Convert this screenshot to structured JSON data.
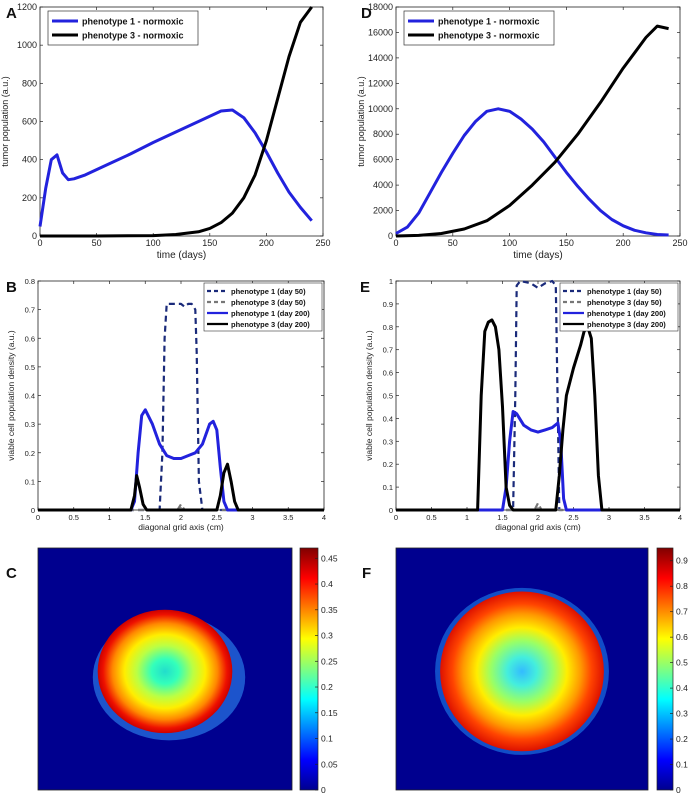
{
  "panels": {
    "A": {
      "letter": "A"
    },
    "B": {
      "letter": "B"
    },
    "C": {
      "letter": "C"
    },
    "D": {
      "letter": "D"
    },
    "E": {
      "letter": "E"
    },
    "F": {
      "letter": "F"
    }
  },
  "chart_data": [
    {
      "panel": "A",
      "type": "line",
      "xlabel": "time (days)",
      "ylabel": "tumor population (a.u.)",
      "xlim": [
        0,
        250
      ],
      "ylim": [
        0,
        1200
      ],
      "xticks": [
        0,
        50,
        100,
        150,
        200,
        250
      ],
      "yticks": [
        0,
        200,
        400,
        600,
        800,
        1000,
        1200
      ],
      "legend_position": "top-left",
      "series": [
        {
          "name": "phenotype 1 - normoxic",
          "color": "#2222dd",
          "style": "solid",
          "x": [
            0,
            5,
            10,
            15,
            20,
            25,
            30,
            40,
            60,
            80,
            100,
            120,
            140,
            160,
            170,
            180,
            190,
            200,
            210,
            220,
            230,
            240
          ],
          "y": [
            50,
            250,
            400,
            425,
            330,
            295,
            300,
            320,
            375,
            430,
            490,
            545,
            600,
            655,
            660,
            620,
            540,
            440,
            330,
            230,
            150,
            80
          ]
        },
        {
          "name": "phenotype 3 - normoxic",
          "color": "#000000",
          "style": "solid",
          "x": [
            0,
            50,
            100,
            120,
            140,
            150,
            160,
            170,
            180,
            190,
            200,
            210,
            220,
            230,
            240
          ],
          "y": [
            0,
            0,
            2,
            8,
            22,
            40,
            70,
            120,
            200,
            320,
            500,
            720,
            940,
            1120,
            1200
          ]
        }
      ]
    },
    {
      "panel": "D",
      "type": "line",
      "xlabel": "time (days)",
      "ylabel": "tumor population (a.u.)",
      "xlim": [
        0,
        250
      ],
      "ylim": [
        0,
        18000
      ],
      "xticks": [
        0,
        50,
        100,
        150,
        200,
        250
      ],
      "yticks": [
        0,
        2000,
        4000,
        6000,
        8000,
        10000,
        12000,
        14000,
        16000,
        18000
      ],
      "legend_position": "top-left",
      "series": [
        {
          "name": "phenotype 1 - normoxic",
          "color": "#2222dd",
          "style": "solid",
          "x": [
            0,
            10,
            20,
            30,
            40,
            50,
            60,
            70,
            80,
            90,
            100,
            110,
            120,
            130,
            140,
            150,
            160,
            170,
            180,
            190,
            200,
            210,
            220,
            230,
            240
          ],
          "y": [
            200,
            700,
            1800,
            3400,
            5000,
            6500,
            7900,
            9000,
            9800,
            10000,
            9800,
            9200,
            8400,
            7400,
            6200,
            5000,
            3900,
            2900,
            2000,
            1300,
            800,
            450,
            250,
            120,
            80
          ]
        },
        {
          "name": "phenotype 3 - normoxic",
          "color": "#000000",
          "style": "solid",
          "x": [
            0,
            20,
            40,
            60,
            80,
            100,
            120,
            140,
            160,
            180,
            200,
            210,
            220,
            230,
            240
          ],
          "y": [
            0,
            50,
            200,
            550,
            1200,
            2400,
            4000,
            5800,
            8000,
            10500,
            13200,
            14400,
            15600,
            16500,
            16300
          ]
        }
      ]
    },
    {
      "panel": "B",
      "type": "line",
      "xlabel": "diagonal grid axis (cm)",
      "ylabel": "viable cell population density (a.u.)",
      "xlim": [
        0,
        4
      ],
      "ylim": [
        0,
        0.8
      ],
      "xticks": [
        0,
        0.5,
        1,
        1.5,
        2,
        2.5,
        3,
        3.5,
        4
      ],
      "yticks": [
        0,
        0.1,
        0.2,
        0.3,
        0.4,
        0.5,
        0.6,
        0.7,
        0.8
      ],
      "legend_position": "top-right",
      "series": [
        {
          "name": "phenotype 1 (day 50)",
          "color": "#1a2a7a",
          "style": "dashed",
          "x": [
            0,
            1.7,
            1.74,
            1.77,
            1.8,
            1.9,
            2.0,
            2.05,
            2.1,
            2.15,
            2.2,
            2.22,
            2.25,
            2.3,
            4
          ],
          "y": [
            0,
            0,
            0.2,
            0.6,
            0.72,
            0.72,
            0.72,
            0.71,
            0.72,
            0.72,
            0.7,
            0.55,
            0.1,
            0,
            0
          ]
        },
        {
          "name": "phenotype 3 (day 50)",
          "color": "#777777",
          "style": "dashed",
          "x": [
            0,
            1.95,
            2.0,
            2.05,
            4
          ],
          "y": [
            0,
            0,
            0.02,
            0,
            0
          ]
        },
        {
          "name": "phenotype 1 (day 200)",
          "color": "#2222dd",
          "style": "solid",
          "x": [
            0,
            1.3,
            1.35,
            1.4,
            1.45,
            1.5,
            1.6,
            1.7,
            1.8,
            1.9,
            2.0,
            2.1,
            2.2,
            2.3,
            2.4,
            2.45,
            2.5,
            2.55,
            2.6,
            2.65,
            4
          ],
          "y": [
            0,
            0,
            0.03,
            0.2,
            0.33,
            0.35,
            0.3,
            0.23,
            0.19,
            0.18,
            0.18,
            0.19,
            0.2,
            0.23,
            0.3,
            0.31,
            0.28,
            0.15,
            0.03,
            0,
            0
          ]
        },
        {
          "name": "phenotype 3 (day 200)",
          "color": "#000000",
          "style": "solid",
          "x": [
            0,
            1.3,
            1.35,
            1.38,
            1.42,
            1.47,
            1.52,
            2.5,
            2.55,
            2.6,
            2.65,
            2.7,
            2.75,
            2.8,
            4
          ],
          "y": [
            0,
            0,
            0.05,
            0.12,
            0.08,
            0.02,
            0,
            0,
            0.05,
            0.13,
            0.16,
            0.1,
            0.03,
            0,
            0
          ]
        }
      ]
    },
    {
      "panel": "E",
      "type": "line",
      "xlabel": "diagonal grid axis (cm)",
      "ylabel": "viable cell population density (a.u.)",
      "xlim": [
        0,
        4
      ],
      "ylim": [
        0,
        1
      ],
      "xticks": [
        0,
        0.5,
        1,
        1.5,
        2,
        2.5,
        3,
        3.5,
        4
      ],
      "yticks": [
        0,
        0.1,
        0.2,
        0.3,
        0.4,
        0.5,
        0.6,
        0.7,
        0.8,
        0.9,
        1
      ],
      "legend_position": "top-right",
      "series": [
        {
          "name": "phenotype 1 (day 50)",
          "color": "#1a2a7a",
          "style": "dashed",
          "x": [
            0,
            1.65,
            1.68,
            1.7,
            1.75,
            1.9,
            2.0,
            2.1,
            2.2,
            2.25,
            2.28,
            2.3,
            4
          ],
          "y": [
            0,
            0,
            0.5,
            0.98,
            1.0,
            0.99,
            0.97,
            0.99,
            1.0,
            0.98,
            0.4,
            0,
            0
          ]
        },
        {
          "name": "phenotype 3 (day 50)",
          "color": "#777777",
          "style": "dashed",
          "x": [
            0,
            1.95,
            2.0,
            2.05,
            4
          ],
          "y": [
            0,
            0,
            0.03,
            0,
            0
          ]
        },
        {
          "name": "phenotype 1 (day 200)",
          "color": "#2222dd",
          "style": "solid",
          "x": [
            0,
            1.5,
            1.55,
            1.6,
            1.65,
            1.7,
            1.8,
            1.9,
            2.0,
            2.1,
            2.2,
            2.28,
            2.32,
            2.36,
            2.4,
            4
          ],
          "y": [
            0,
            0,
            0.1,
            0.3,
            0.43,
            0.42,
            0.37,
            0.35,
            0.34,
            0.35,
            0.36,
            0.38,
            0.3,
            0.05,
            0,
            0
          ]
        },
        {
          "name": "phenotype 3 (day 200)",
          "color": "#000000",
          "style": "solid",
          "x": [
            0,
            1.15,
            1.2,
            1.25,
            1.3,
            1.35,
            1.4,
            1.45,
            1.5,
            1.55,
            1.6,
            1.65,
            2.25,
            2.3,
            2.35,
            2.4,
            2.5,
            2.6,
            2.65,
            2.7,
            2.75,
            2.8,
            2.85,
            2.9,
            4
          ],
          "y": [
            0,
            0,
            0.5,
            0.78,
            0.82,
            0.83,
            0.8,
            0.7,
            0.45,
            0.1,
            0.02,
            0,
            0,
            0.15,
            0.35,
            0.5,
            0.62,
            0.72,
            0.78,
            0.8,
            0.75,
            0.5,
            0.15,
            0,
            0
          ]
        }
      ]
    },
    {
      "panel": "C",
      "type": "heatmap",
      "colormap": "jet",
      "clim": [
        0,
        0.47
      ],
      "colorbar_ticks": [
        0,
        0.05,
        0.1,
        0.15,
        0.2,
        0.25,
        0.3,
        0.35,
        0.4,
        0.45
      ],
      "center_value": 0.19,
      "rim_value": 0.46,
      "background_value": 0
    },
    {
      "panel": "F",
      "type": "heatmap",
      "colormap": "jet",
      "clim": [
        0,
        0.95
      ],
      "colorbar_ticks": [
        0,
        0.1,
        0.2,
        0.3,
        0.4,
        0.5,
        0.6,
        0.7,
        0.8,
        0.9
      ],
      "center_value": 0.2,
      "rim_value": 0.85,
      "background_value": 0
    }
  ]
}
